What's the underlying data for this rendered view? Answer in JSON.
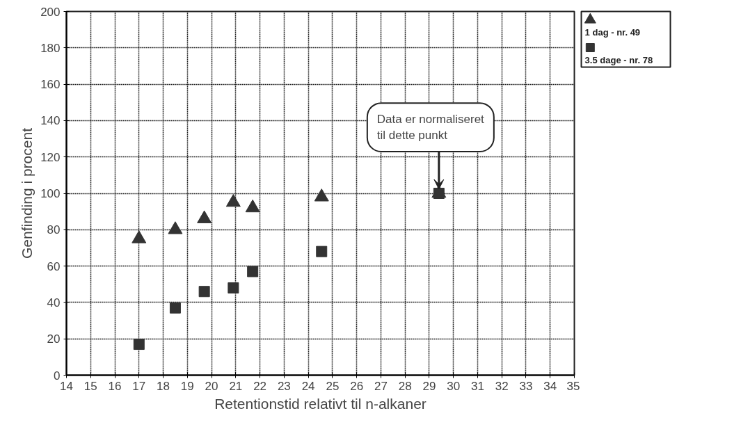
{
  "chart_data": {
    "type": "scatter",
    "xlabel": "Retentionstid relativt til n-alkaner",
    "ylabel": "Genfinding i procent",
    "xlim": [
      14,
      35
    ],
    "xticks": [
      14,
      15,
      16,
      17,
      18,
      19,
      20,
      21,
      22,
      23,
      24,
      25,
      26,
      27,
      28,
      29,
      30,
      31,
      32,
      33,
      34,
      35
    ],
    "ylim": [
      0,
      200
    ],
    "yticks": [
      0,
      20,
      40,
      60,
      80,
      100,
      120,
      140,
      160,
      180,
      200
    ],
    "grid": true,
    "legend": "top right",
    "series": [
      {
        "name": "3.5 dage - nr. 78",
        "color": "#333333",
        "marker": "square",
        "x": [
          17.0,
          18.5,
          19.7,
          20.9,
          21.7,
          24.55,
          29.4
        ],
        "values": [
          17,
          37,
          46,
          48,
          57,
          68,
          100
        ]
      },
      {
        "name": "1 dag - nr. 49",
        "color": "#333333",
        "marker": "triangle",
        "x": [
          17.0,
          18.5,
          19.7,
          20.9,
          21.7,
          24.55,
          29.4
        ],
        "values": [
          75,
          80,
          86,
          95,
          92,
          98,
          100
        ]
      }
    ],
    "annotations": [
      {
        "text": "Data er normaliseret\ntil dette punkt",
        "x": 29.4,
        "y": 100
      }
    ]
  }
}
